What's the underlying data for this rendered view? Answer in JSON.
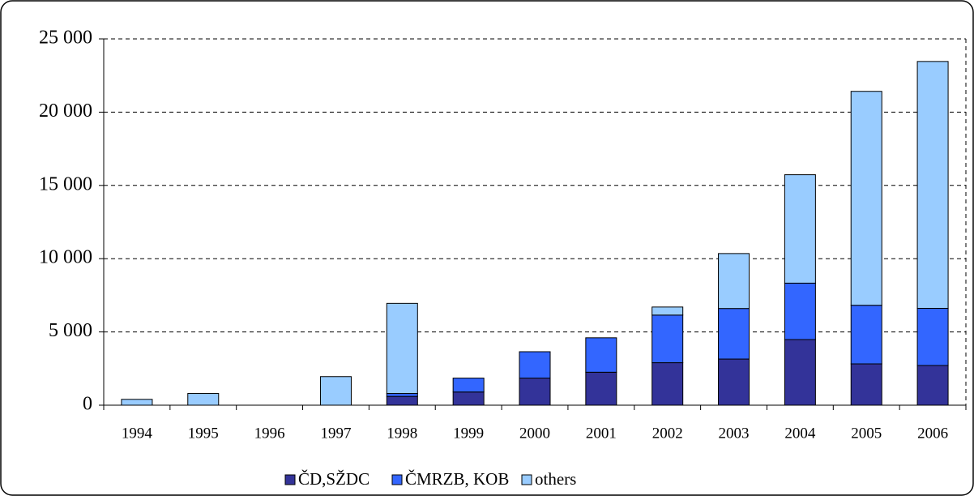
{
  "chart_data": {
    "type": "stacked-bar",
    "categories": [
      "1994",
      "1995",
      "1996",
      "1997",
      "1998",
      "1999",
      "2000",
      "2001",
      "2002",
      "2003",
      "2004",
      "2005",
      "2006"
    ],
    "series": [
      {
        "name": "ČD,SŽDC",
        "color": "#333399",
        "values": [
          0,
          0,
          0,
          0,
          600,
          900,
          1850,
          2250,
          2900,
          3150,
          4480,
          2820,
          2710
        ]
      },
      {
        "name": "ČMRZB, KOB",
        "color": "#3366ff",
        "values": [
          0,
          0,
          0,
          0,
          200,
          950,
          1800,
          2350,
          3250,
          3450,
          3850,
          4000,
          3900
        ]
      },
      {
        "name": "others",
        "color": "#99ccff",
        "values": [
          400,
          800,
          0,
          1950,
          6150,
          0,
          0,
          0,
          550,
          3750,
          7400,
          14600,
          16850
        ]
      }
    ],
    "ylim": [
      0,
      25000
    ],
    "yticks": [
      0,
      {
        "value": 5000,
        "label": "5 000"
      },
      {
        "value": 10000,
        "label": "10 000"
      },
      {
        "value": 15000,
        "label": "15 000"
      },
      {
        "value": 20000,
        "label": "20 000"
      },
      {
        "value": 25000,
        "label": "25 000"
      }
    ],
    "grid": true
  }
}
